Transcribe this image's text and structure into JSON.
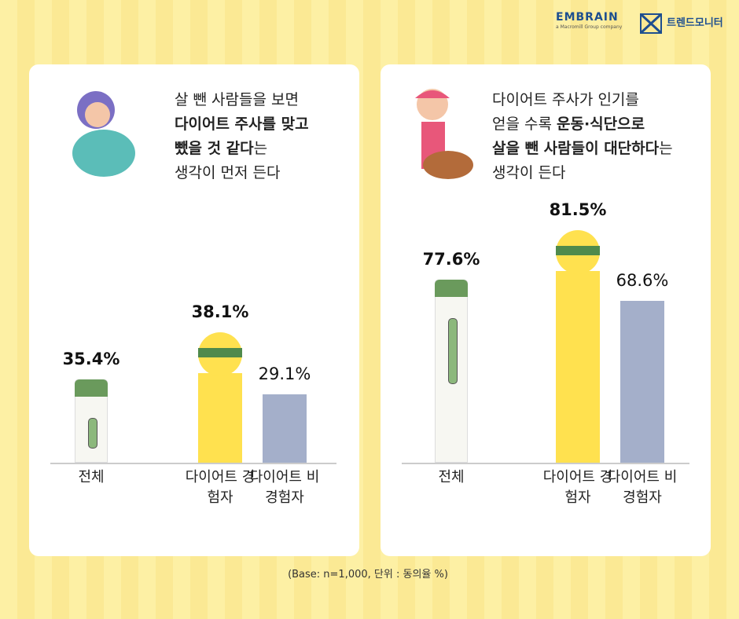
{
  "header": {
    "brand": "EMBRAIN",
    "brand_sub": "a Macromill Group company",
    "partner": "트렌드모니터"
  },
  "chart_data": [
    {
      "type": "bar",
      "title_lines": [
        [
          {
            "text": "살 뺀 사람들을 보면",
            "bold": false
          }
        ],
        [
          {
            "text": "다이어트 주사를 맞고",
            "bold": true
          }
        ],
        [
          {
            "text": "뺐을 것 같다",
            "bold": true
          },
          {
            "text": "는",
            "bold": false
          }
        ],
        [
          {
            "text": "생각이 먼저 든다",
            "bold": false
          }
        ]
      ],
      "categories": [
        "전체",
        "다이어트 경험자",
        "다이어트 비경험자"
      ],
      "values": [
        35.4,
        38.1,
        29.1
      ],
      "value_labels": [
        "35.4%",
        "38.1%",
        "29.1%"
      ],
      "bold_labels": [
        true,
        true,
        false
      ],
      "colors": [
        "#f7f7f2",
        "#ffe14f",
        "#a4afca"
      ]
    },
    {
      "type": "bar",
      "title_lines": [
        [
          {
            "text": "다이어트 주사가 인기를",
            "bold": false
          }
        ],
        [
          {
            "text": "얻을 수록 ",
            "bold": false
          },
          {
            "text": "운동·식단으로",
            "bold": true
          }
        ],
        [
          {
            "text": "살을 뺀 사람들이 대단하다",
            "bold": true
          },
          {
            "text": "는",
            "bold": false
          }
        ],
        [
          {
            "text": "생각이 든다",
            "bold": false
          }
        ]
      ],
      "categories": [
        "전체",
        "다이어트 경험자",
        "다이어트 비경험자"
      ],
      "values": [
        77.6,
        81.5,
        68.6
      ],
      "value_labels": [
        "77.6%",
        "81.5%",
        "68.6%"
      ],
      "bold_labels": [
        true,
        true,
        false
      ],
      "colors": [
        "#f7f7f2",
        "#ffe14f",
        "#a4afca"
      ]
    }
  ],
  "footnote": "(Base: n=1,000, 단위 : 동의율 %)"
}
